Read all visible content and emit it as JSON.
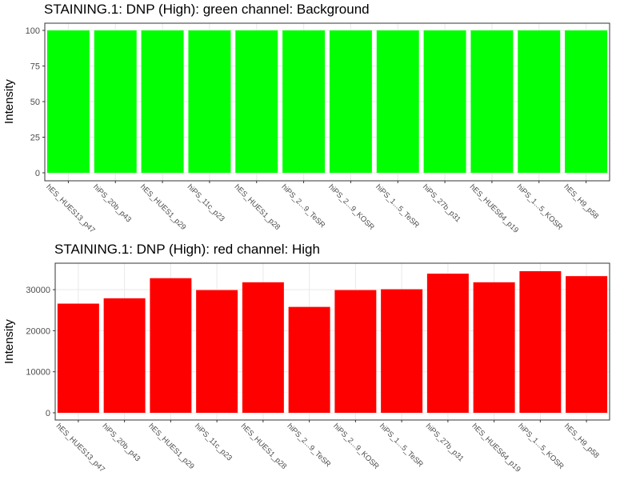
{
  "chart_data": [
    {
      "type": "bar",
      "title": "STAINING.1: DNP (High): green channel: Background",
      "xlabel": "",
      "ylabel": "Intensity",
      "categories": [
        "hES_HUES13_p47",
        "hiPS_20b_p43",
        "hES_HUES1_p29",
        "hiPS_11c_p23",
        "hES_HUES1_p28",
        "hiPS_2...9_TeSR",
        "hiPS_2...9_KOSR",
        "hiPS_1...5_TeSR",
        "hiPS_27b_p31",
        "hES_HUES64_p19",
        "hiPS_1...5_KOSR",
        "hES_H9_p58"
      ],
      "values": [
        100,
        100,
        100,
        100,
        100,
        100,
        100,
        100,
        100,
        100,
        100,
        100
      ],
      "ylim": [
        0,
        100
      ],
      "yticks": [
        0,
        25,
        50,
        75,
        100
      ],
      "ytick_labels": [
        "0",
        "25",
        "50",
        "75",
        "100"
      ],
      "bar_color": "#00ff00",
      "grid": true,
      "legend": "none"
    },
    {
      "type": "bar",
      "title": "STAINING.1: DNP (High): red channel: High",
      "xlabel": "",
      "ylabel": "Intensity",
      "categories": [
        "hES_HUES13_p47",
        "hiPS_20b_p43",
        "hES_HUES1_p29",
        "hiPS_11c_p23",
        "hES_HUES1_p28",
        "hiPS_2...9_TeSR",
        "hiPS_2...9_KOSR",
        "hiPS_1...5_TeSR",
        "hiPS_27b_p31",
        "hES_HUES64_p19",
        "hiPS_1...5_KOSR",
        "hES_H9_p58"
      ],
      "values": [
        26600,
        27900,
        32800,
        29900,
        31800,
        25800,
        29900,
        30100,
        33900,
        31800,
        34500,
        33300
      ],
      "ylim": [
        0,
        34500
      ],
      "yticks": [
        0,
        10000,
        20000,
        30000
      ],
      "ytick_labels": [
        "0",
        "10000",
        "20000",
        "30000"
      ],
      "bar_color": "#ff0000",
      "grid": true,
      "legend": "none"
    }
  ]
}
